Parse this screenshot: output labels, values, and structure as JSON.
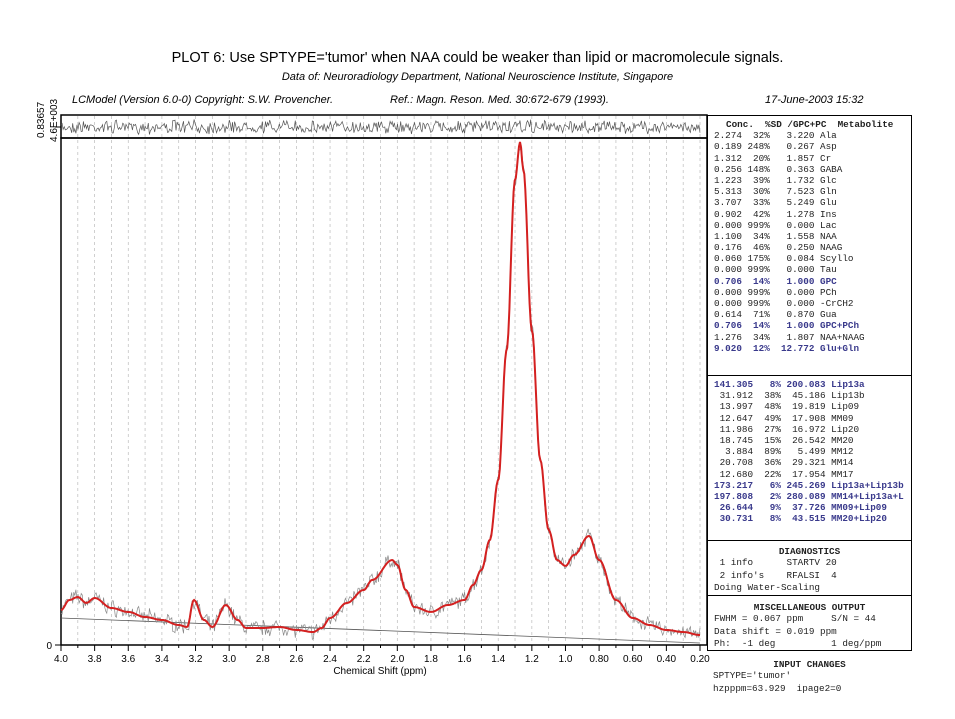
{
  "header": {
    "title": "PLOT 6:  Use SPTYPE='tumor' when NAA could be weaker than lipid or macromolecule signals.",
    "subtitle": "Data of: Neuroradiology Department, National Neuroscience Institute, Singapore",
    "program": "LCModel (Version 6.0-0) Copyright: S.W. Provencher.",
    "reference": "Ref.: Magn. Reson. Med. 30:672-679 (1993).",
    "date": "17-June-2003  15:32"
  },
  "chart_data": {
    "type": "line",
    "xlabel": "Chemical Shift (ppm)",
    "ylabel": "",
    "xlim": [
      4.0,
      0.2
    ],
    "ylim": [
      0,
      4600
    ],
    "y_tick_labels": [
      "0",
      "4.6E+003"
    ],
    "residual_axis_labels": [
      "0.83657"
    ],
    "x_tick_labels": [
      "4.0",
      "3.8",
      "3.6",
      "3.4",
      "3.2",
      "3.0",
      "2.8",
      "2.6",
      "2.4",
      "2.2",
      "2.0",
      "1.8",
      "1.6",
      "1.4",
      "1.2",
      "1.0",
      "0.80",
      "0.60",
      "0.40",
      "0.20"
    ],
    "x_ticks": [
      4.0,
      3.8,
      3.6,
      3.4,
      3.2,
      3.0,
      2.8,
      2.6,
      2.4,
      2.2,
      2.0,
      1.8,
      1.6,
      1.4,
      1.2,
      1.0,
      0.8,
      0.6,
      0.4,
      0.2
    ],
    "grid": "vertical dashed every 0.1 ppm",
    "series": [
      {
        "name": "fit",
        "color": "#d42020",
        "x": [
          4.0,
          3.95,
          3.9,
          3.85,
          3.8,
          3.7,
          3.6,
          3.5,
          3.4,
          3.3,
          3.25,
          3.21,
          3.15,
          3.1,
          3.02,
          2.95,
          2.9,
          2.8,
          2.7,
          2.6,
          2.5,
          2.45,
          2.4,
          2.3,
          2.2,
          2.15,
          2.03,
          2.0,
          1.95,
          1.9,
          1.8,
          1.7,
          1.6,
          1.55,
          1.5,
          1.45,
          1.4,
          1.35,
          1.3,
          1.27,
          1.25,
          1.2,
          1.15,
          1.1,
          1.05,
          1.0,
          0.95,
          0.86,
          0.8,
          0.7,
          0.6,
          0.5,
          0.4,
          0.3,
          0.2
        ],
        "y": [
          319,
          410,
          437,
          383,
          428,
          337,
          301,
          255,
          228,
          182,
          164,
          410,
          228,
          164,
          364,
          228,
          155,
          155,
          164,
          137,
          118,
          155,
          246,
          383,
          501,
          592,
          774,
          729,
          501,
          346,
          301,
          364,
          410,
          547,
          683,
          956,
          1503,
          2687,
          4236,
          4582,
          4327,
          2869,
          1685,
          1048,
          774,
          720,
          820,
          993,
          774,
          410,
          246,
          182,
          137,
          118,
          91
        ]
      },
      {
        "name": "baseline",
        "color": "#555555",
        "x": [
          4.0,
          0.2
        ],
        "y": [
          246,
          18
        ]
      },
      {
        "name": "data",
        "color": "#888888",
        "note": "fit plus noise"
      },
      {
        "name": "residual",
        "color": "#555555"
      }
    ]
  },
  "concentrations": {
    "columns": "Conc.  %SD /GPC+PC  Metabolite",
    "rows": [
      {
        "text": "2.274  32%   3.220 Ala",
        "hl": false
      },
      {
        "text": "0.189 248%   0.267 Asp",
        "hl": false
      },
      {
        "text": "1.312  20%   1.857 Cr",
        "hl": false
      },
      {
        "text": "0.256 148%   0.363 GABA",
        "hl": false
      },
      {
        "text": "1.223  39%   1.732 Glc",
        "hl": false
      },
      {
        "text": "5.313  30%   7.523 Gln",
        "hl": false
      },
      {
        "text": "3.707  33%   5.249 Glu",
        "hl": false
      },
      {
        "text": "0.902  42%   1.278 Ins",
        "hl": false
      },
      {
        "text": "0.000 999%   0.000 Lac",
        "hl": false
      },
      {
        "text": "1.100  34%   1.558 NAA",
        "hl": false
      },
      {
        "text": "0.176  46%   0.250 NAAG",
        "hl": false
      },
      {
        "text": "0.060 175%   0.084 Scyllo",
        "hl": false
      },
      {
        "text": "0.000 999%   0.000 Tau",
        "hl": false
      },
      {
        "text": "0.706  14%   1.000 GPC",
        "hl": true
      },
      {
        "text": "0.000 999%   0.000 PCh",
        "hl": false
      },
      {
        "text": "0.000 999%   0.000 -CrCH2",
        "hl": false
      },
      {
        "text": "0.614  71%   0.870 Gua",
        "hl": false
      },
      {
        "text": "0.706  14%   1.000 GPC+PCh",
        "hl": true
      },
      {
        "text": "1.276  34%   1.807 NAA+NAAG",
        "hl": false
      },
      {
        "text": "9.020  12%  12.772 Glu+Gln",
        "hl": true
      }
    ]
  },
  "lipids": {
    "rows": [
      {
        "text": "141.305   8% 200.083 Lip13a",
        "hl": true
      },
      {
        "text": " 31.912  38%  45.186 Lip13b",
        "hl": false
      },
      {
        "text": " 13.997  48%  19.819 Lip09",
        "hl": false
      },
      {
        "text": " 12.647  49%  17.908 MM09",
        "hl": false
      },
      {
        "text": " 11.986  27%  16.972 Lip20",
        "hl": false
      },
      {
        "text": " 18.745  15%  26.542 MM20",
        "hl": false
      },
      {
        "text": "  3.884  89%   5.499 MM12",
        "hl": false
      },
      {
        "text": " 20.708  36%  29.321 MM14",
        "hl": false
      },
      {
        "text": " 12.680  22%  17.954 MM17",
        "hl": false
      },
      {
        "text": "173.217   6% 245.269 Lip13a+Lip13b",
        "hl": true
      },
      {
        "text": "197.808   2% 280.089 MM14+Lip13a+L",
        "hl": true
      },
      {
        "text": " 26.644   9%  37.726 MM09+Lip09",
        "hl": true
      },
      {
        "text": " 30.731   8%  43.515 MM20+Lip20",
        "hl": true
      }
    ]
  },
  "diagnostics": {
    "title": "DIAGNOSTICS",
    "lines": [
      " 1 info      STARTV 20",
      " 2 info's    RFALSI  4",
      "Doing Water-Scaling"
    ]
  },
  "misc": {
    "title": "MISCELLANEOUS OUTPUT",
    "lines": [
      "FWHM = 0.067 ppm     S/N = 44",
      "Data shift = 0.019 ppm",
      "Ph:  -1 deg          1 deg/ppm"
    ]
  },
  "input_changes": {
    "title": "INPUT CHANGES",
    "lines": [
      "SPTYPE='tumor'",
      "hzpppm=63.929  ipage2=0"
    ]
  }
}
